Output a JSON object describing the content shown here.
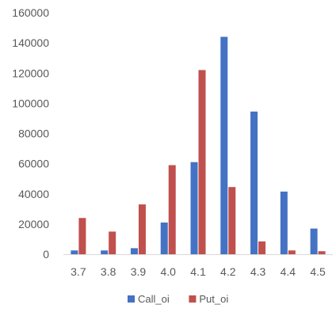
{
  "chart_data": {
    "type": "bar",
    "categories": [
      "3.7",
      "3.8",
      "3.9",
      "4.0",
      "4.1",
      "4.2",
      "4.3",
      "4.4",
      "4.5"
    ],
    "series": [
      {
        "name": "Call_oi",
        "color": "#4472C4",
        "values": [
          2500,
          2500,
          4000,
          21000,
          61000,
          144000,
          94500,
          41500,
          17000
        ]
      },
      {
        "name": "Put_oi",
        "color": "#C0504D",
        "values": [
          24000,
          15000,
          33000,
          59000,
          122000,
          44500,
          8500,
          2500,
          2000
        ]
      }
    ],
    "ylim": [
      0,
      160000
    ],
    "yticks": [
      "0",
      "20000",
      "40000",
      "60000",
      "80000",
      "100000",
      "120000",
      "140000",
      "160000"
    ],
    "title": "",
    "xlabel": "",
    "ylabel": "",
    "grid": false,
    "legend_position": "bottom"
  }
}
